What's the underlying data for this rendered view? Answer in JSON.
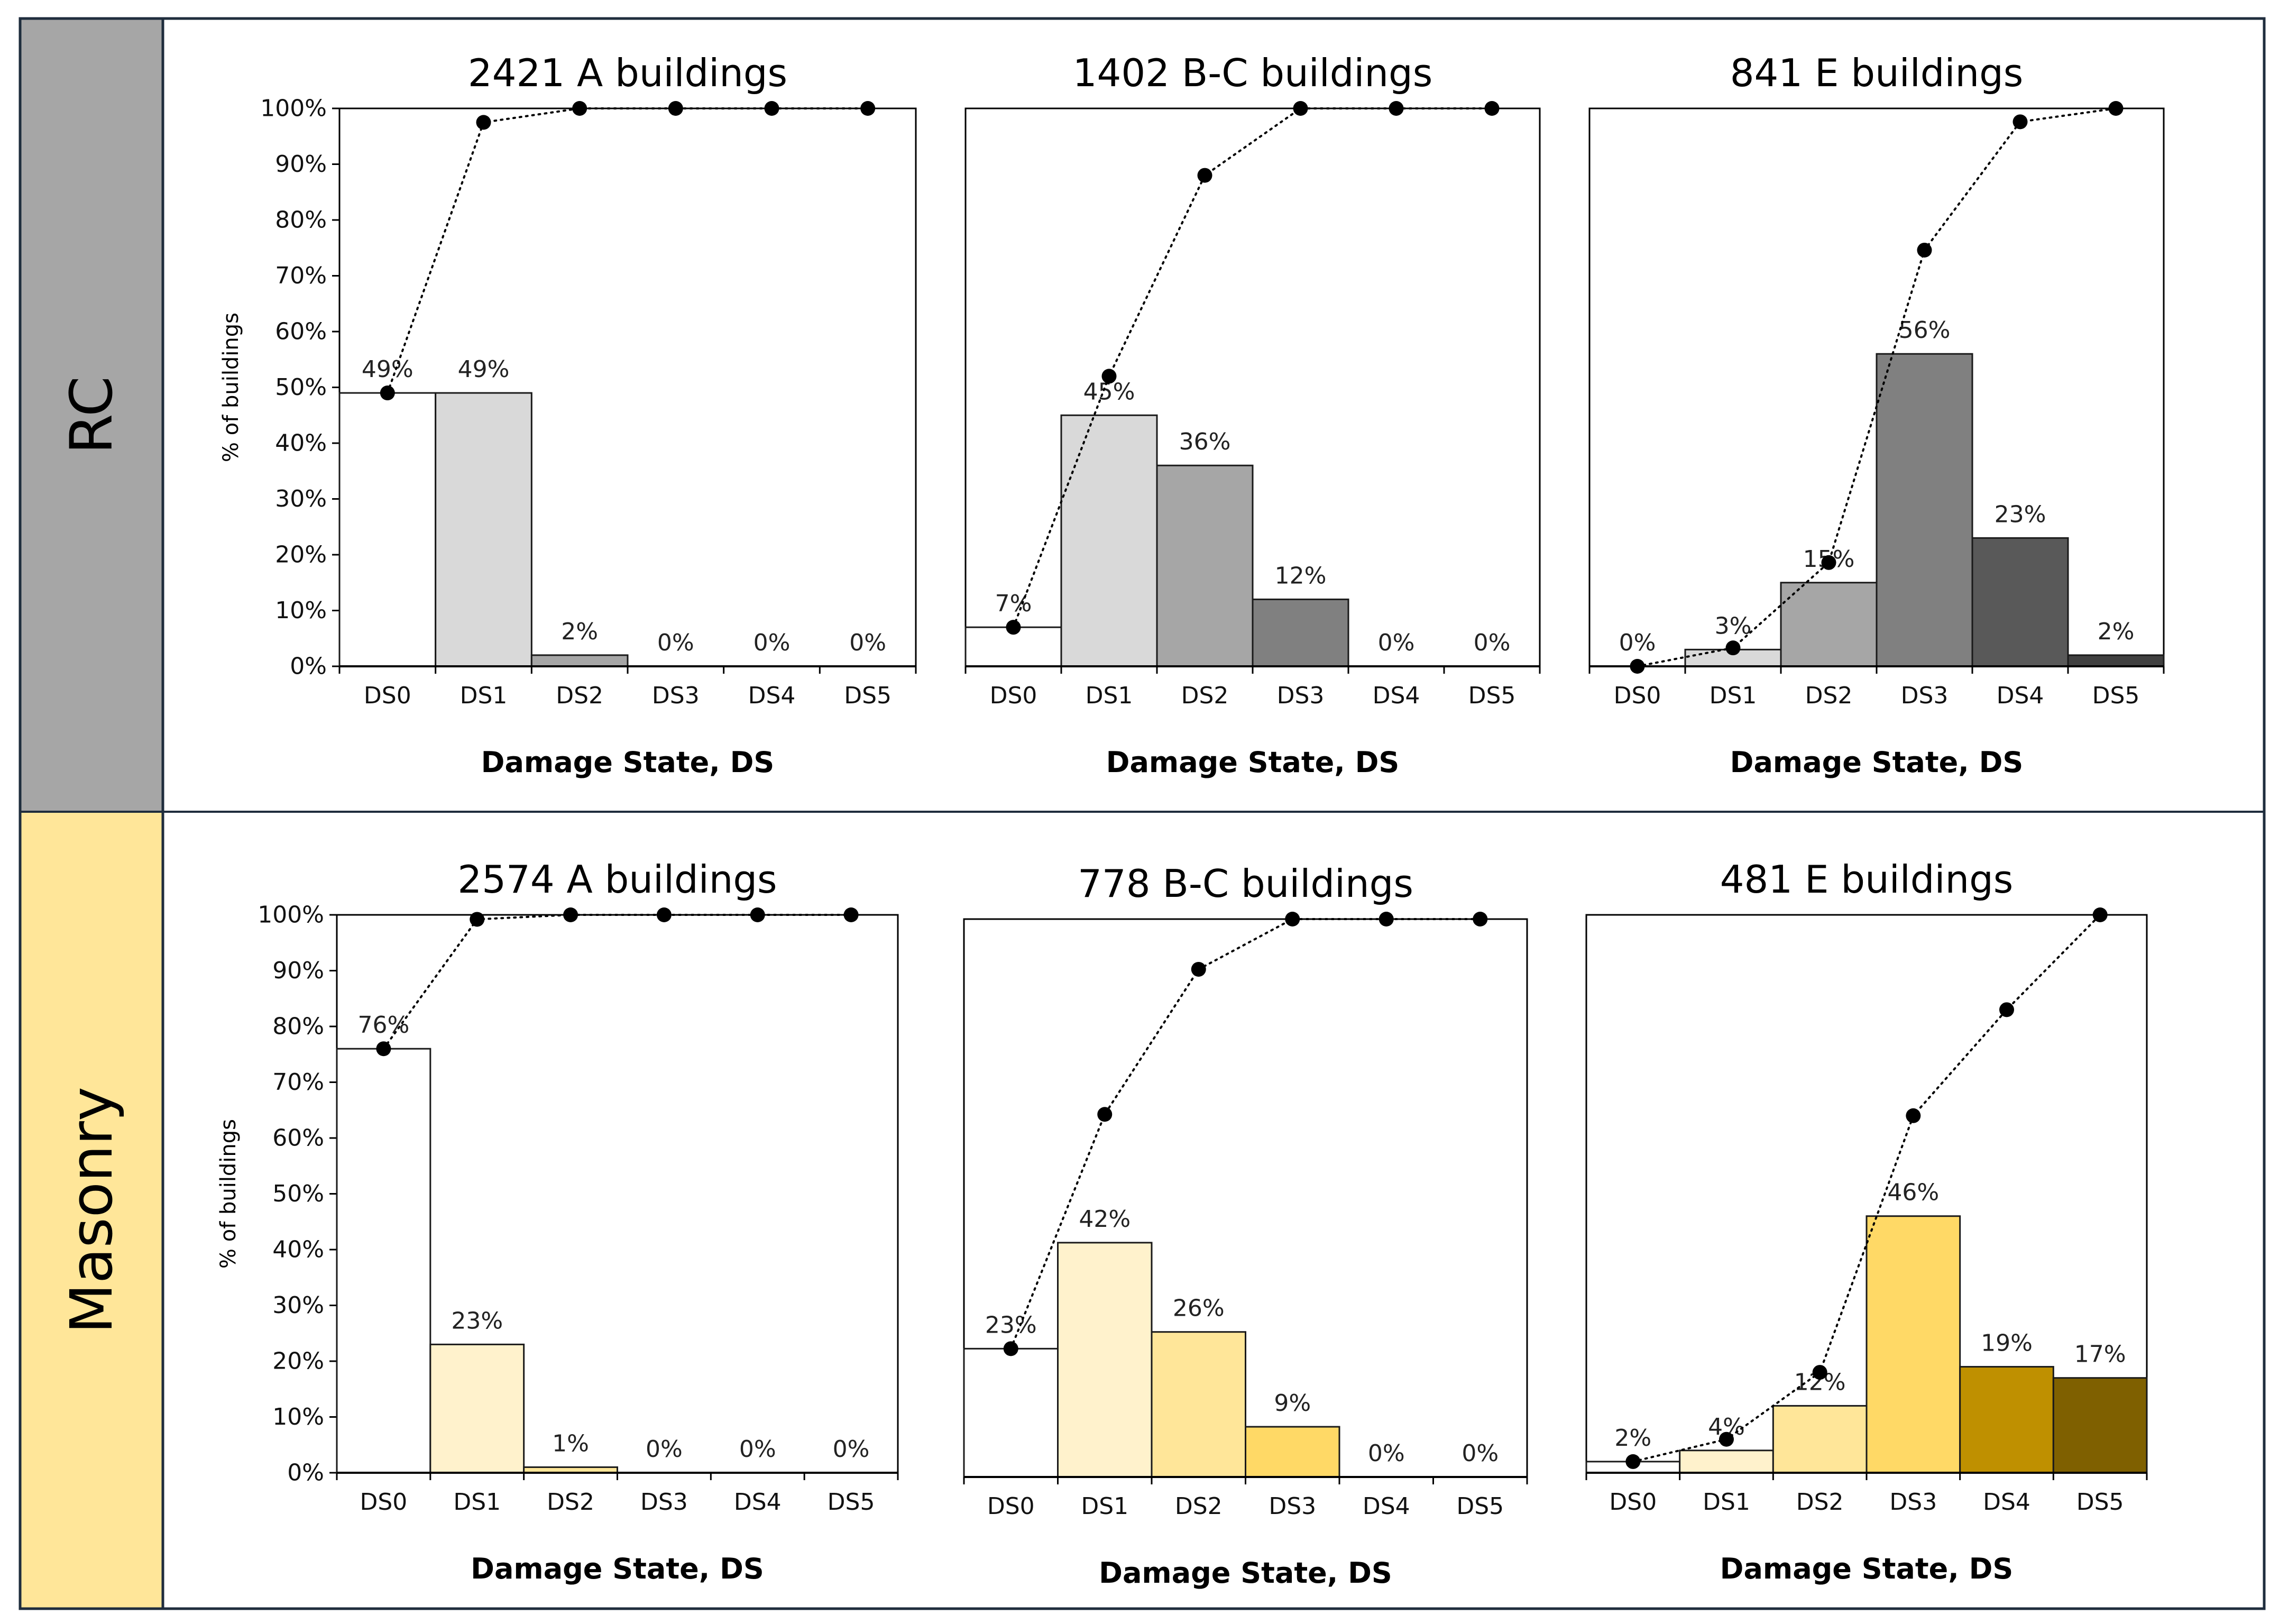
{
  "rows": [
    {
      "label": "RC",
      "color": "#a6a6a6"
    },
    {
      "label": "Masonry",
      "color": "#ffe699"
    }
  ],
  "chart_data": [
    {
      "type": "bar+line",
      "row": "RC",
      "title": "2421 A buildings",
      "categories": [
        "DS0",
        "DS1",
        "DS2",
        "DS3",
        "DS4",
        "DS5"
      ],
      "values": [
        49,
        49,
        2,
        0,
        0,
        0
      ],
      "value_labels": [
        "49%",
        "49%",
        "2%",
        "0%",
        "0%",
        "0%"
      ],
      "cumulative": [
        49,
        97.5,
        100,
        100,
        100,
        100
      ],
      "bar_colors": [
        "#ffffff",
        "#d9d9d9",
        "#a6a6a6",
        "#808080",
        "#595959",
        "#404040"
      ],
      "xlabel": "Damage State, DS",
      "ylabel": "% of buildings",
      "ylim": [
        0,
        100
      ],
      "yticks": [
        "0%",
        "10%",
        "20%",
        "30%",
        "40%",
        "50%",
        "60%",
        "70%",
        "80%",
        "90%",
        "100%"
      ],
      "show_yaxis": true
    },
    {
      "type": "bar+line",
      "row": "RC",
      "title": "1402 B-C buildings",
      "categories": [
        "DS0",
        "DS1",
        "DS2",
        "DS3",
        "DS4",
        "DS5"
      ],
      "values": [
        7,
        45,
        36,
        12,
        0,
        0
      ],
      "value_labels": [
        "7%",
        "45%",
        "36%",
        "12%",
        "0%",
        "0%"
      ],
      "cumulative": [
        7,
        52,
        88,
        100,
        100,
        100
      ],
      "bar_colors": [
        "#ffffff",
        "#d9d9d9",
        "#a6a6a6",
        "#808080",
        "#595959",
        "#404040"
      ],
      "xlabel": "Damage State, DS",
      "ylabel": "",
      "ylim": [
        0,
        100
      ],
      "yticks": [],
      "show_yaxis": false
    },
    {
      "type": "bar+line",
      "row": "RC",
      "title": "841 E buildings",
      "categories": [
        "DS0",
        "DS1",
        "DS2",
        "DS3",
        "DS4",
        "DS5"
      ],
      "values": [
        0,
        3,
        15,
        56,
        23,
        2
      ],
      "value_labels": [
        "0%",
        "3%",
        "15%",
        "56%",
        "23%",
        "2%"
      ],
      "cumulative": [
        0,
        3.3,
        18.6,
        74.6,
        97.6,
        100
      ],
      "bar_colors": [
        "#ffffff",
        "#d9d9d9",
        "#a6a6a6",
        "#808080",
        "#595959",
        "#404040"
      ],
      "xlabel": "Damage State, DS",
      "ylabel": "",
      "ylim": [
        0,
        100
      ],
      "yticks": [],
      "show_yaxis": false
    },
    {
      "type": "bar+line",
      "row": "Masonry",
      "title": "2574 A buildings",
      "categories": [
        "DS0",
        "DS1",
        "DS2",
        "DS3",
        "DS4",
        "DS5"
      ],
      "values": [
        76,
        23,
        1,
        0,
        0,
        0
      ],
      "value_labels": [
        "76%",
        "23%",
        "1%",
        "0%",
        "0%",
        "0%"
      ],
      "cumulative": [
        76,
        99.2,
        100,
        100,
        100,
        100
      ],
      "bar_colors": [
        "#ffffff",
        "#fff2cc",
        "#ffe699",
        "#ffd966",
        "#bf9000",
        "#7f6000"
      ],
      "xlabel": "Damage State, DS",
      "ylabel": "% of buildings",
      "ylim": [
        0,
        100
      ],
      "yticks": [
        "0%",
        "10%",
        "20%",
        "30%",
        "40%",
        "50%",
        "60%",
        "70%",
        "80%",
        "90%",
        "100%"
      ],
      "show_yaxis": true
    },
    {
      "type": "bar+line",
      "row": "Masonry",
      "title": "778 B-C buildings",
      "categories": [
        "DS0",
        "DS1",
        "DS2",
        "DS3",
        "DS4",
        "DS5"
      ],
      "values": [
        23,
        42,
        26,
        9,
        0,
        0
      ],
      "value_labels": [
        "23%",
        "42%",
        "26%",
        "9%",
        "0%",
        "0%"
      ],
      "cumulative": [
        23,
        65,
        91,
        100,
        100,
        100
      ],
      "bar_colors": [
        "#ffffff",
        "#fff2cc",
        "#ffe699",
        "#ffd966",
        "#bf9000",
        "#7f6000"
      ],
      "xlabel": "Damage State, DS",
      "ylabel": "",
      "ylim": [
        0,
        100
      ],
      "yticks": [],
      "show_yaxis": false
    },
    {
      "type": "bar+line",
      "row": "Masonry",
      "title": "481 E buildings",
      "categories": [
        "DS0",
        "DS1",
        "DS2",
        "DS3",
        "DS4",
        "DS5"
      ],
      "values": [
        2,
        4,
        12,
        46,
        19,
        17
      ],
      "value_labels": [
        "2%",
        "4%",
        "12%",
        "46%",
        "19%",
        "17%"
      ],
      "cumulative": [
        2,
        6,
        18,
        64,
        83,
        100
      ],
      "bar_colors": [
        "#ffffff",
        "#fff2cc",
        "#ffe699",
        "#ffd966",
        "#bf9000",
        "#7f6000"
      ],
      "xlabel": "Damage State, DS",
      "ylabel": "",
      "ylim": [
        0,
        100
      ],
      "yticks": [],
      "show_yaxis": false
    }
  ]
}
